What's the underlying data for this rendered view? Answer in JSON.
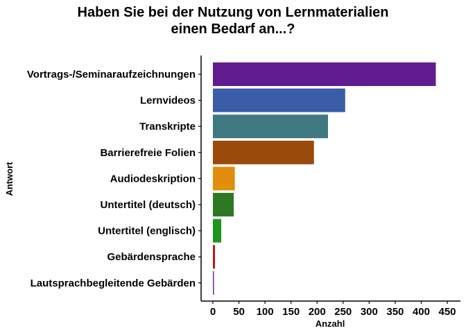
{
  "chart_data": {
    "type": "bar",
    "orientation": "horizontal",
    "title_lines": [
      "Haben Sie bei der Nutzung von Lernmaterialien",
      "einen Bedarf an...?"
    ],
    "xlabel": "Anzahl",
    "ylabel": "Antwort",
    "xlim": [
      0,
      460
    ],
    "xticks": [
      0,
      50,
      100,
      150,
      200,
      250,
      300,
      350,
      400,
      450
    ],
    "grid": false,
    "legend": "none",
    "categories": [
      "Vortrags-/Seminaraufzeichnungen",
      "Lernvideos",
      "Transkripte",
      "Barrierefreie Folien",
      "Audiodeskription",
      "Untertitel (deutsch)",
      "Untertitel (englisch)",
      "Gebärdensprache",
      "Lautsprachbegleitende Gebärden"
    ],
    "values": [
      428,
      254,
      221,
      194,
      42,
      40,
      16,
      4,
      2
    ],
    "colors": [
      "#611c92",
      "#3a5da8",
      "#3f7880",
      "#9a4a0b",
      "#e08e0b",
      "#2d7822",
      "#1e961e",
      "#bd1818",
      "#6a2c8f"
    ]
  }
}
